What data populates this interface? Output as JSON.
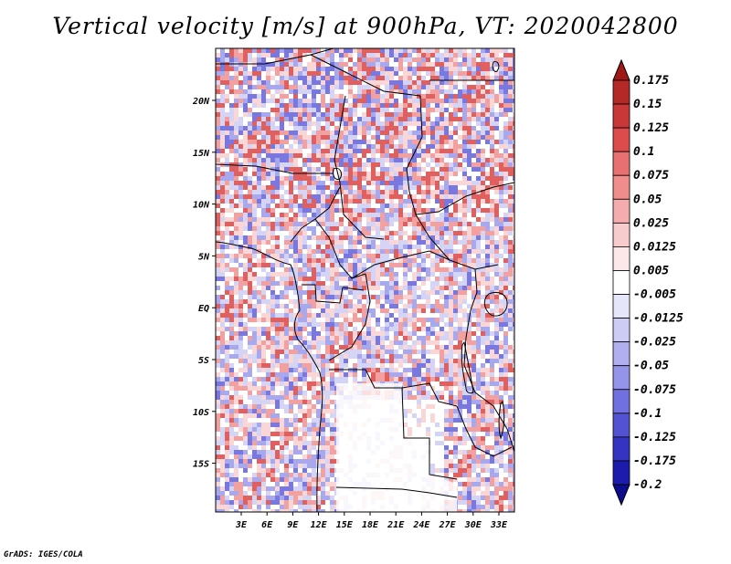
{
  "title": "Vertical velocity [m/s] at 900hPa, VT: 2020042800",
  "credit": "GrADS: IGES/COLA",
  "map": {
    "lon_ticks": [
      "3E",
      "6E",
      "9E",
      "12E",
      "15E",
      "18E",
      "21E",
      "24E",
      "27E",
      "30E",
      "33E"
    ],
    "lat_ticks": [
      "20N",
      "15N",
      "10N",
      "5N",
      "EQ",
      "5S",
      "10S",
      "15S"
    ],
    "field_colors": {
      "strong_up": "#e06060",
      "moderate_up": "#f2a0a0",
      "weak_up": "#fbd6d6",
      "neutral": "#ffffff",
      "weak_down": "#d4d4f6",
      "moderate_down": "#a8a8ee",
      "strong_down": "#7878e0",
      "border_color": "#000000"
    }
  },
  "colorbar": {
    "labels": [
      "0.175",
      "0.15",
      "0.125",
      "0.1",
      "0.075",
      "0.05",
      "0.025",
      "0.0125",
      "0.005",
      "-0.005",
      "-0.0125",
      "-0.025",
      "-0.05",
      "-0.075",
      "-0.1",
      "-0.125",
      "-0.175",
      "-0.2"
    ],
    "colors": [
      "#a01818",
      "#b42828",
      "#c83838",
      "#dc4c4c",
      "#e87070",
      "#f08c8c",
      "#f4acac",
      "#f8cccc",
      "#fce8e8",
      "#ffffff",
      "#e6e6fa",
      "#ccccf6",
      "#b0b0f0",
      "#9494ea",
      "#7070e0",
      "#5252d2",
      "#3434c2",
      "#1c1cac",
      "#0c0c8c"
    ]
  }
}
